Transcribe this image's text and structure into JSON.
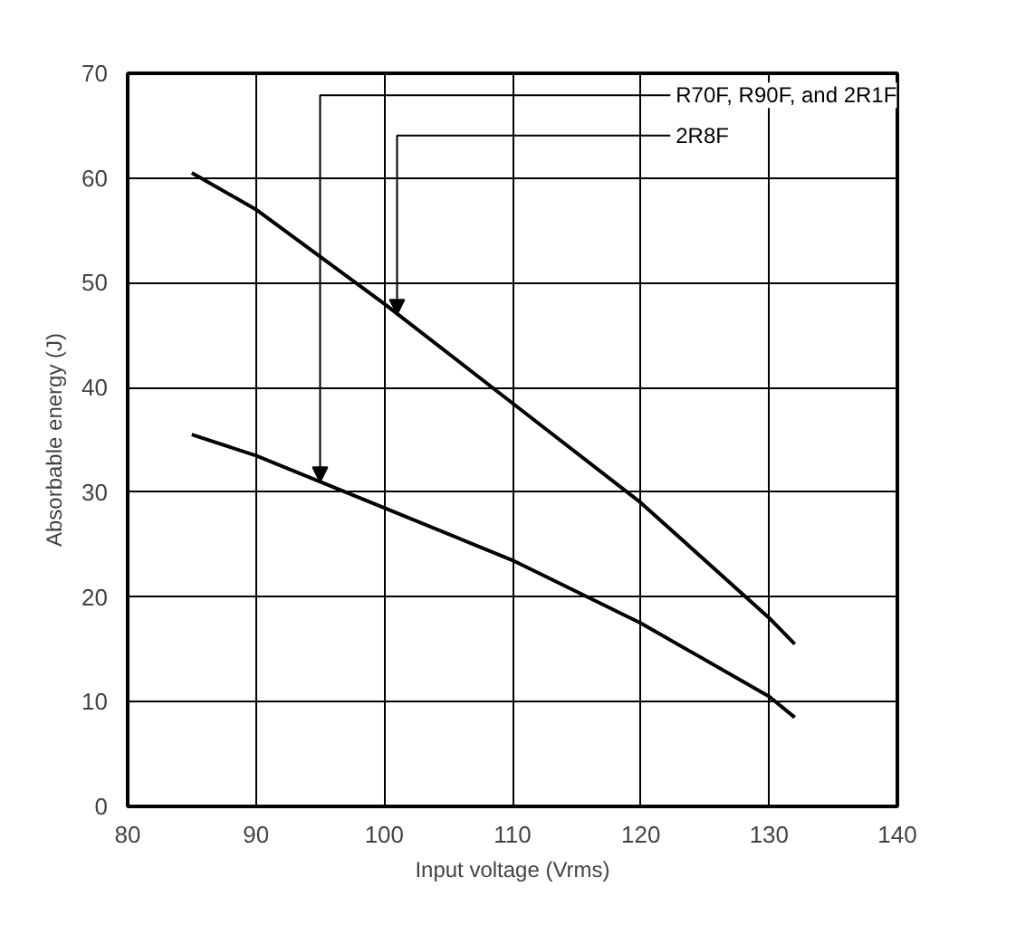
{
  "chart_data": {
    "type": "line",
    "xlabel": "Input voltage (Vrms)",
    "ylabel": "Absorbable energy (J)",
    "xlim": [
      80,
      140
    ],
    "ylim": [
      0,
      70
    ],
    "xticks": [
      80,
      90,
      100,
      110,
      120,
      130,
      140
    ],
    "yticks": [
      0,
      10,
      20,
      30,
      40,
      50,
      60,
      70
    ],
    "grid": true,
    "marker": "none",
    "line_style": "solid",
    "series": [
      {
        "color": "#000000",
        "x": [
          85,
          90,
          100,
          110,
          120,
          130,
          132
        ],
        "values": [
          60.5,
          57,
          48,
          38.5,
          29,
          18,
          15.5
        ]
      },
      {
        "color": "#000000",
        "x": [
          85,
          90,
          100,
          110,
          120,
          130,
          132
        ],
        "values": [
          35.5,
          33.5,
          28.5,
          23.5,
          17.5,
          10.5,
          8.5
        ]
      }
    ],
    "annotations": [
      {
        "text": "R70F, R90F, and 2R1F",
        "x": 95,
        "y": 31
      },
      {
        "text": "2R8F",
        "x": 101,
        "y": 47
      }
    ]
  }
}
